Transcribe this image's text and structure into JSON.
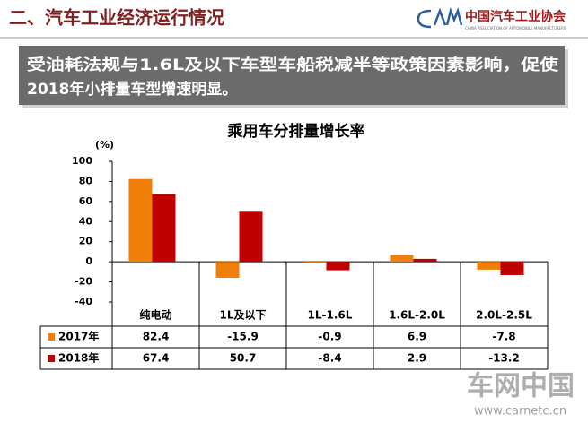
{
  "header": {
    "title": "二、汽车工业经济运行情况",
    "logo_name": "中国汽车工业协会",
    "logo_subtitle": "CHINA ASSOCIATION OF AUTOMOBILE MANUFACTURERS"
  },
  "callout": {
    "lines": [
      "受油耗法规与1.6L及以下车型车船税减半等政策因素影响，促使",
      "2018年小排量车型增速明显。"
    ]
  },
  "watermark": {
    "name": "车网中国",
    "url": "www.carnetc.cn"
  },
  "chart_data": {
    "type": "bar",
    "title": "乘用车分排量增长率",
    "y_label": "(%)",
    "categories": [
      "纯电动",
      "1L及以下",
      "1L-1.6L",
      "1.6L-2.0L",
      "2.0L-2.5L"
    ],
    "series": [
      {
        "name": "2017年",
        "color": "#f07f09",
        "values": [
          82.4,
          -15.9,
          -0.9,
          6.9,
          -7.8
        ]
      },
      {
        "name": "2018年",
        "color": "#c00000",
        "values": [
          67.4,
          50.7,
          -8.4,
          2.9,
          -13.2
        ]
      }
    ],
    "ylim": [
      -40,
      100
    ],
    "yticks": [
      -40,
      -20,
      0,
      20,
      40,
      60,
      80,
      100
    ]
  }
}
